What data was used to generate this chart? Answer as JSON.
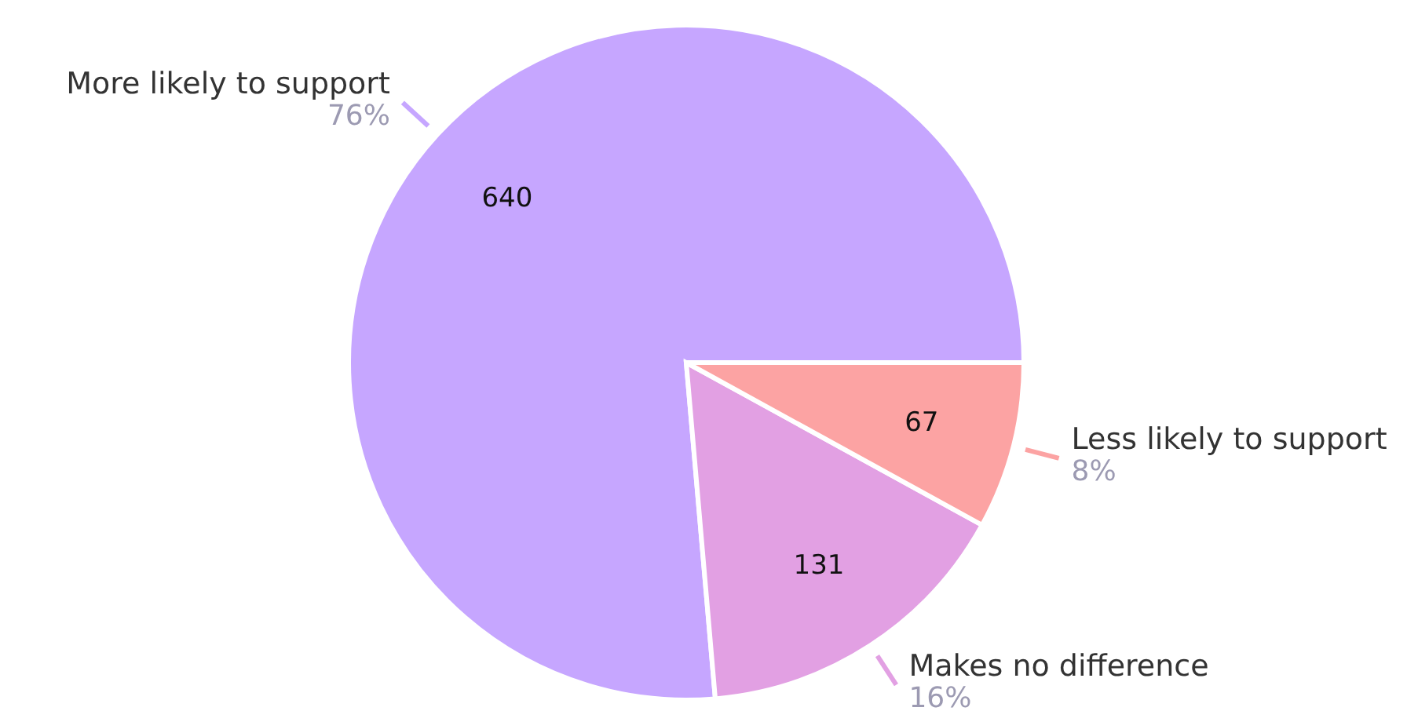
{
  "chart_data": {
    "type": "pie",
    "categories": [
      "More likely to support",
      "Makes no difference",
      "Less likely to support"
    ],
    "values": [
      640,
      131,
      67
    ],
    "colors": [
      "#c6a6ff",
      "#e2a0e3",
      "#fca3a3"
    ],
    "data_labels": true,
    "annotations": [
      "76%",
      "16%",
      "8%"
    ]
  }
}
